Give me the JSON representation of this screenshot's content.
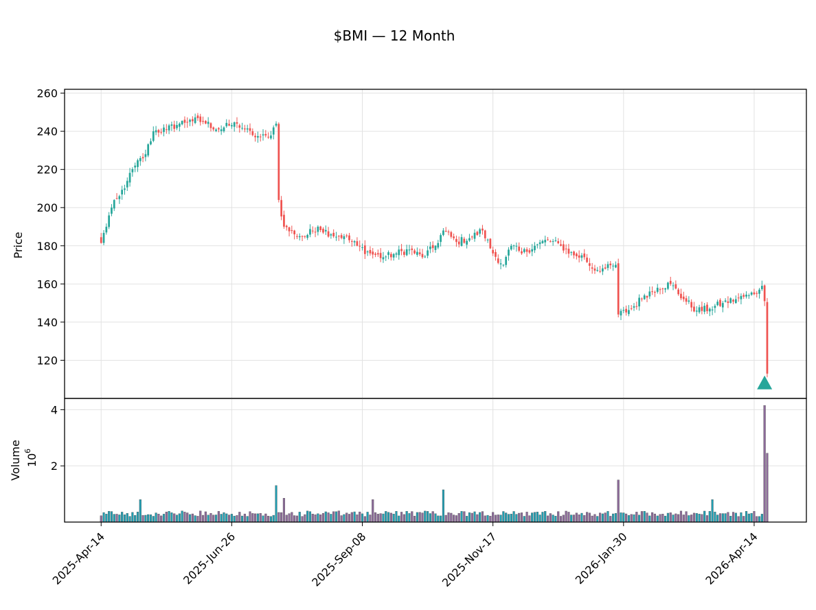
{
  "chart_data": {
    "type": "candlestick",
    "title": "$BMI — 12 Month",
    "price_panel": {
      "ylabel": "Price",
      "ylim": [
        100,
        262
      ],
      "yticks": [
        120,
        140,
        160,
        180,
        200,
        220,
        240,
        260
      ],
      "grid": true
    },
    "volume_panel": {
      "ylabel": "Volume",
      "multiplier": "10",
      "multiplier_exp": "6",
      "ylim": [
        0,
        4.4
      ],
      "yticks": [
        2,
        4
      ],
      "grid": true
    },
    "x_ticks": [
      {
        "index": 0,
        "label": "2025-Apr-14"
      },
      {
        "index": 50,
        "label": "2025-Jun-26"
      },
      {
        "index": 100,
        "label": "2025-Sep-08"
      },
      {
        "index": 150,
        "label": "2025-Nov-17"
      },
      {
        "index": 200,
        "label": "2026-Jan-30"
      },
      {
        "index": 250,
        "label": "2026-Apr-14"
      }
    ],
    "x_range": [
      -14,
      270
    ],
    "marker": {
      "type": "triangle-up",
      "index": 254,
      "price": 108,
      "color": "#26a69a"
    },
    "colors": {
      "up": "#26a69a",
      "down": "#ef5350",
      "edge": "#555555",
      "volume_up": "#1f9fb3",
      "volume_down": "#8c6a9a"
    },
    "anchors": [
      [
        0,
        181.5
      ],
      [
        4,
        200
      ],
      [
        7,
        206
      ],
      [
        10,
        214
      ],
      [
        13,
        222
      ],
      [
        17,
        228
      ],
      [
        20,
        240
      ],
      [
        25,
        241
      ],
      [
        30,
        244
      ],
      [
        34,
        246
      ],
      [
        39,
        245
      ],
      [
        45,
        241
      ],
      [
        49,
        243
      ],
      [
        52,
        244
      ],
      [
        55,
        241
      ],
      [
        58,
        238
      ],
      [
        61,
        237
      ],
      [
        64,
        237
      ],
      [
        67,
        244
      ],
      [
        68,
        204
      ],
      [
        70,
        190
      ],
      [
        74,
        186
      ],
      [
        78,
        185
      ],
      [
        83,
        190
      ],
      [
        88,
        186
      ],
      [
        93,
        185
      ],
      [
        98,
        180
      ],
      [
        103,
        176
      ],
      [
        108,
        174
      ],
      [
        113,
        176
      ],
      [
        118,
        178
      ],
      [
        123,
        174
      ],
      [
        128,
        180
      ],
      [
        131,
        188
      ],
      [
        136,
        182
      ],
      [
        141,
        184
      ],
      [
        146,
        188
      ],
      [
        150,
        176
      ],
      [
        154,
        170
      ],
      [
        157,
        180
      ],
      [
        161,
        176
      ],
      [
        166,
        180
      ],
      [
        171,
        183
      ],
      [
        176,
        180
      ],
      [
        181,
        175
      ],
      [
        185,
        174
      ],
      [
        188,
        168
      ],
      [
        193,
        168
      ],
      [
        197,
        170
      ],
      [
        198,
        144
      ],
      [
        203,
        147
      ],
      [
        208,
        154
      ],
      [
        213,
        158
      ],
      [
        218,
        160
      ],
      [
        223,
        152
      ],
      [
        228,
        146
      ],
      [
        233,
        147
      ],
      [
        238,
        150
      ],
      [
        243,
        152
      ],
      [
        248,
        154
      ],
      [
        252,
        157
      ],
      [
        253,
        159
      ],
      [
        254,
        151
      ],
      [
        255,
        113
      ]
    ],
    "volume_stats": {
      "base_million": 0.2,
      "spikes": [
        [
          15,
          0.8
        ],
        [
          67,
          1.3
        ],
        [
          70,
          0.85
        ],
        [
          104,
          0.8
        ],
        [
          131,
          1.15
        ],
        [
          198,
          1.5
        ],
        [
          234,
          0.8
        ],
        [
          254,
          4.15
        ],
        [
          255,
          2.45
        ]
      ]
    }
  }
}
